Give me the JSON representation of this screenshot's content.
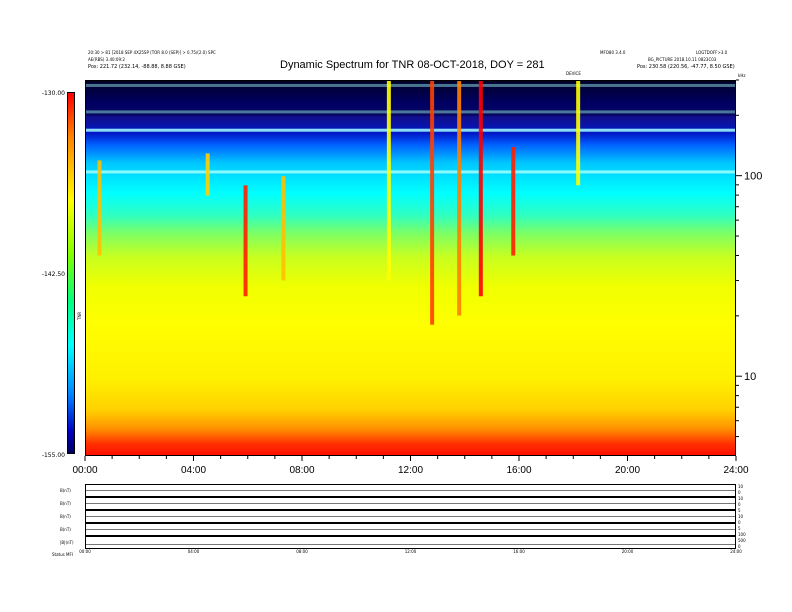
{
  "header": {
    "title": "Dynamic Spectrum for TNR 08-OCT-2018, DOY = 281",
    "left_line1": "20:30 > 81 [2018 SEP 4X25SP (TOR 8.0 (SEP)] > 0.75/(2.0) SPC",
    "left_line2": "AE(RBS) 3.40:09:2",
    "left_line3": "Pos:   221.72 (232.14, -88.88, 8.88 GSE)",
    "right_line1": "MFO80 3.4.0",
    "right_line2": "LOGTDOFF>3.0",
    "right_line3": "BG_PICTURE 2018.10.11 0823C03",
    "right_line4": "Pos:   230.58 (220.56, -47.77, 8.50 GSE)",
    "center_tag": "DEVICE",
    "right_tag": "kHz",
    "colorbar_unit": "TNR"
  },
  "chart_data": {
    "type": "heatmap",
    "title": "Dynamic Spectrum for TNR 08-OCT-2018, DOY = 281",
    "x_ticks": [
      "00:00",
      "04:00",
      "08:00",
      "12:00",
      "16:00",
      "20:00",
      "24:00"
    ],
    "x_range_hours": [
      0,
      24
    ],
    "y_ticks": [
      10,
      100
    ],
    "y_scale": "log",
    "y_range": [
      4,
      300
    ],
    "y_unit": "kHz",
    "colorbar_ticks": [
      "-130.00",
      "-142.50",
      "-155.00"
    ],
    "colorbar_range": [
      -155,
      -130
    ],
    "colorscale": [
      "#000060",
      "#0000c0",
      "#0080ff",
      "#00ffff",
      "#00ff80",
      "#80ff00",
      "#ffff00",
      "#ff8000",
      "#ff0000"
    ],
    "bursts": [
      {
        "time_h": 0.5,
        "freq_khz_range": [
          40,
          120
        ],
        "color": "#ffc000"
      },
      {
        "time_h": 4.5,
        "freq_khz_range": [
          80,
          130
        ],
        "color": "#ffd000"
      },
      {
        "time_h": 5.9,
        "freq_khz_range": [
          25,
          90
        ],
        "color": "#ff2000"
      },
      {
        "time_h": 7.3,
        "freq_khz_range": [
          30,
          100
        ],
        "color": "#ffc000"
      },
      {
        "time_h": 11.2,
        "freq_khz_range": [
          30,
          300
        ],
        "color": "#ffff00"
      },
      {
        "time_h": 12.8,
        "freq_khz_range": [
          18,
          300
        ],
        "color": "#ff4000"
      },
      {
        "time_h": 13.8,
        "freq_khz_range": [
          20,
          300
        ],
        "color": "#ff8000"
      },
      {
        "time_h": 14.6,
        "freq_khz_range": [
          25,
          300
        ],
        "color": "#ff0000"
      },
      {
        "time_h": 15.8,
        "freq_khz_range": [
          40,
          140
        ],
        "color": "#ff2000"
      },
      {
        "time_h": 18.2,
        "freq_khz_range": [
          90,
          300
        ],
        "color": "#ffff00"
      }
    ]
  },
  "bottom_panels": {
    "labels": [
      "B(nT)",
      "B(nT)",
      "B(nT)",
      "B(nT)",
      "|B|(nT)"
    ],
    "right_labels": [
      "10",
      "0",
      "10",
      "0",
      "5",
      "10",
      "0",
      "5",
      "100",
      "500",
      "0"
    ],
    "x_ticks": [
      "00:00",
      "04:00",
      "08:00",
      "12:00",
      "16:00",
      "20:00",
      "24:00"
    ],
    "footer_left": "Status",
    "footer_left2": "MFI"
  }
}
